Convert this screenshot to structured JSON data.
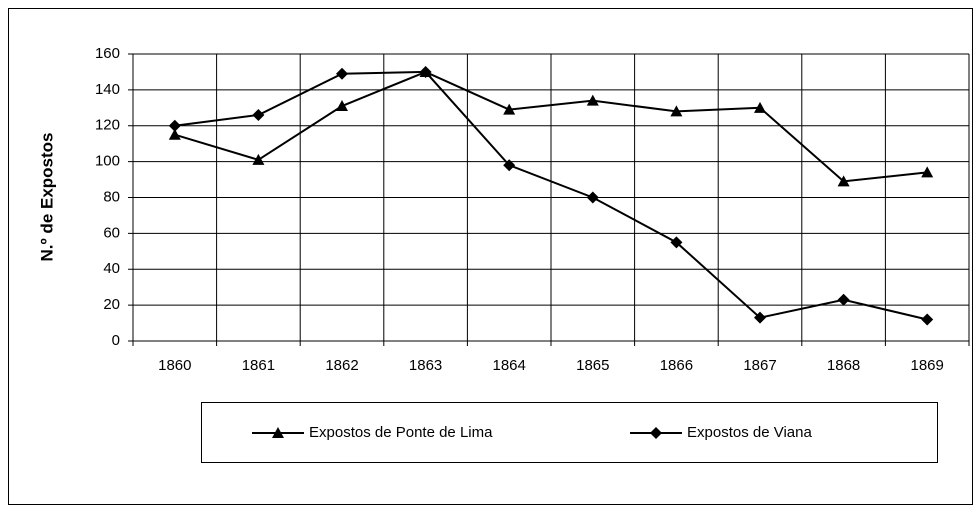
{
  "chart_data": {
    "type": "line",
    "y_label": "N.º de Expostos",
    "categories": [
      "1860",
      "1861",
      "1862",
      "1863",
      "1864",
      "1865",
      "1866",
      "1867",
      "1868",
      "1869"
    ],
    "series": [
      {
        "name": "Expostos de Ponte de Lima",
        "color": "#000000",
        "marker": "triangle",
        "values": [
          115,
          101,
          131,
          150,
          129,
          134,
          128,
          130,
          89,
          94
        ]
      },
      {
        "name": "Expostos de Viana",
        "color": "#000000",
        "marker": "diamond",
        "values": [
          120,
          126,
          149,
          150,
          98,
          80,
          55,
          13,
          23,
          12
        ]
      }
    ],
    "ylim": [
      0,
      160
    ],
    "yticks": [
      0,
      20,
      40,
      60,
      80,
      100,
      120,
      140,
      160
    ],
    "grid": true,
    "legend": "bottom"
  }
}
